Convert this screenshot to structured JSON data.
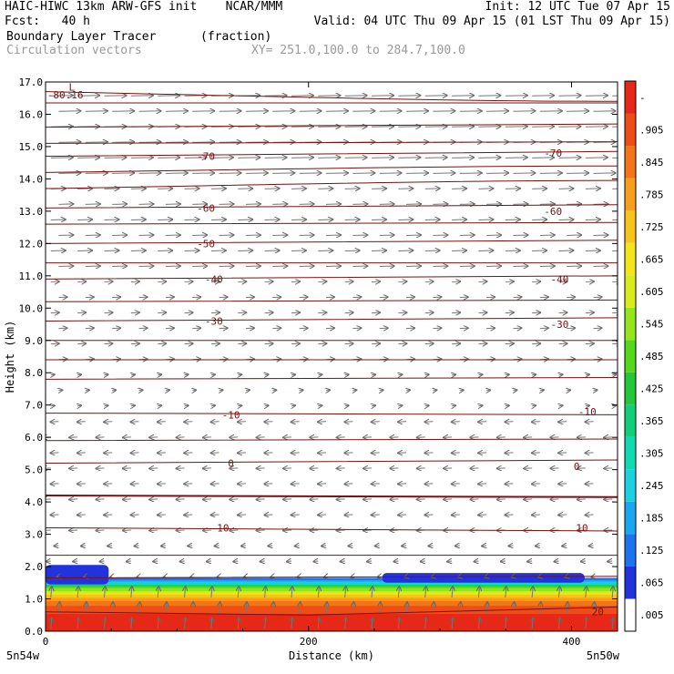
{
  "header": {
    "line1_left": "HAIC-HIWC 13km ARW-GFS init    NCAR/MMM",
    "line1_right": "Init: 12 UTC Tue 07 Apr 15",
    "line2_left": "Fcst:   40 h",
    "line2_right": "Valid: 04 UTC Thu 09 Apr 15 (01 LST Thu 09 Apr 15)",
    "line3_left": "Boundary Layer Tracer",
    "line3_units": "(fraction)",
    "line4_left": "Circulation vectors",
    "line4_xy": "XY= 251.0,100.0 to 284.7,100.0"
  },
  "chart_data": {
    "type": "heatmap",
    "xlabel": "Distance (km)",
    "ylabel": "Height (km)",
    "xlim": [
      0,
      435
    ],
    "ylim": [
      0,
      17
    ],
    "x_ticks": [
      0,
      200,
      400
    ],
    "y_ticks": [
      0,
      1,
      2,
      3,
      4,
      5,
      6,
      7,
      8,
      9,
      10,
      11,
      12,
      13,
      14,
      15,
      16,
      17
    ],
    "endpoint_labels": {
      "left": "5n54w",
      "right": "5n50w"
    },
    "colorbar": {
      "labels": [
        ".005",
        ".065",
        ".125",
        ".185",
        ".245",
        ".305",
        ".365",
        ".425",
        ".485",
        ".545",
        ".605",
        ".665",
        ".725",
        ".785",
        ".845",
        ".905",
        "-"
      ],
      "colors": [
        "#ffffff",
        "#2233dd",
        "#1c73f0",
        "#18a8f0",
        "#1ad1e2",
        "#10d9b4",
        "#0fcf78",
        "#22c83a",
        "#55d81a",
        "#94e61a",
        "#d7ec1a",
        "#f4e41a",
        "#f8c41a",
        "#f89e18",
        "#f47418",
        "#ee4d18",
        "#e82816"
      ]
    },
    "tracer_profile": {
      "heights_km": [
        0.2,
        0.6,
        0.9,
        1.1,
        1.3,
        1.5,
        1.65
      ],
      "fraction": [
        0.98,
        0.93,
        0.84,
        0.72,
        0.55,
        0.3,
        0.08
      ]
    },
    "blue_patches_km": [
      {
        "x0": 0,
        "x1": 48,
        "y0": 1.45,
        "y1": 2.05
      },
      {
        "x0": 256,
        "x1": 410,
        "y0": 1.5,
        "y1": 1.8
      }
    ],
    "temperature_contours": {
      "labels": [
        {
          "value": "-80.16",
          "x": 15,
          "y": 16.6
        },
        {
          "value": "-70",
          "x": 122,
          "y": 14.7
        },
        {
          "value": "-70",
          "x": 386,
          "y": 14.8
        },
        {
          "value": "-60",
          "x": 122,
          "y": 13.1
        },
        {
          "value": "-60",
          "x": 386,
          "y": 13.0
        },
        {
          "value": "-50",
          "x": 122,
          "y": 12.0
        },
        {
          "value": "-40",
          "x": 128,
          "y": 10.9
        },
        {
          "value": "-40",
          "x": 391,
          "y": 10.9
        },
        {
          "value": "-30",
          "x": 128,
          "y": 9.6
        },
        {
          "value": "-30",
          "x": 391,
          "y": 9.5
        },
        {
          "value": "-10",
          "x": 141,
          "y": 6.7
        },
        {
          "value": "-10",
          "x": 412,
          "y": 6.8
        },
        {
          "value": "0",
          "x": 141,
          "y": 5.2
        },
        {
          "value": "0",
          "x": 404,
          "y": 5.1
        },
        {
          "value": "10",
          "x": 135,
          "y": 3.2
        },
        {
          "value": "10",
          "x": 408,
          "y": 3.2
        },
        {
          "value": "20",
          "x": 420,
          "y": 0.6
        }
      ],
      "low_marker": {
        "text": "L",
        "x": 20,
        "y": 16.85
      }
    }
  }
}
